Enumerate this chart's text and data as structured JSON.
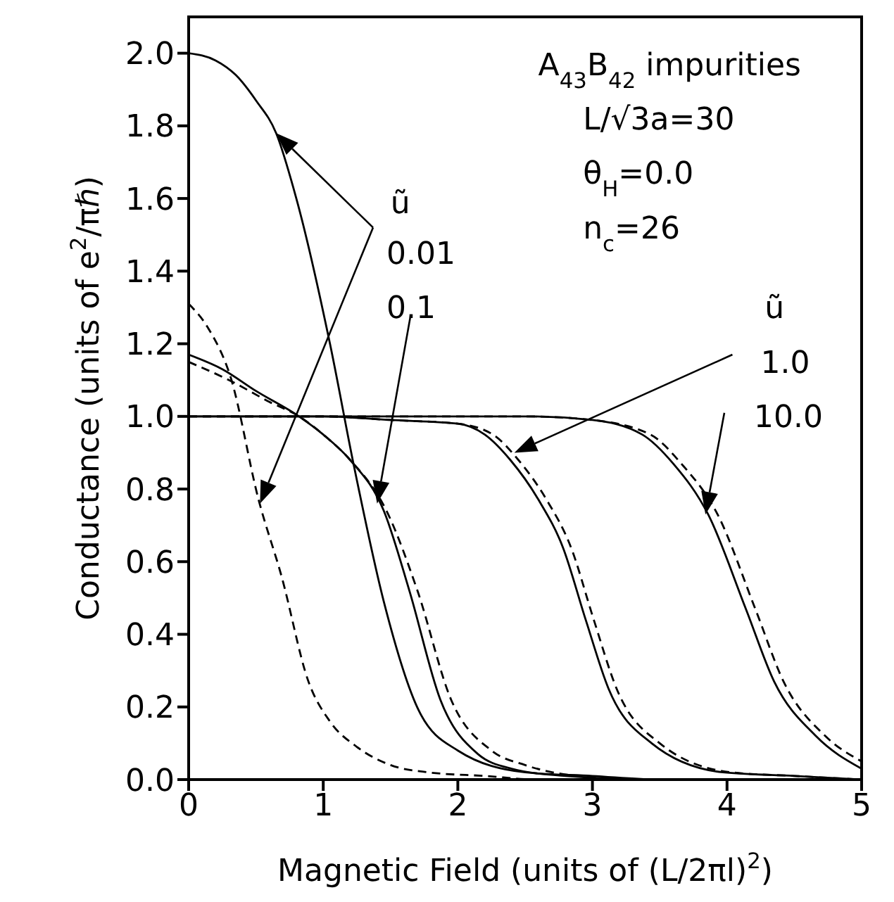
{
  "chart_data": {
    "type": "line",
    "xlabel": "Magnetic Field (units of (L/2πl)$^{2}$)",
    "ylabel": "Conductance (units of e$^{2}$/πℏ)",
    "xlim": [
      0,
      5
    ],
    "ylim": [
      0,
      2.1
    ],
    "xticks": [
      0,
      1,
      2,
      3,
      4,
      5
    ],
    "yticks": [
      {
        "value": 0,
        "label": "0.0"
      },
      0.2,
      0.4,
      0.6,
      0.8,
      {
        "value": 1,
        "label": "1.0"
      },
      1.2,
      1.4,
      1.6,
      1.8,
      {
        "value": 2,
        "label": "2.0"
      }
    ],
    "marker": "none",
    "annotations": [
      "A$_{43}$B$_{42}$ impurities",
      "L/√3a=30",
      "θ$_{H}$=0.0",
      "n$_{c}$=26",
      "ũ",
      "0.01",
      "0.1",
      "ũ",
      "1.0",
      {
        "text": "10.0",
        "x": 3.84,
        "y": 0.73
      }
    ],
    "series": [
      {
        "color": "#000000",
        "line_style": "solid",
        "x": [
          0,
          0.2,
          0.35,
          0.5,
          0.65,
          0.8,
          1.05,
          1.23,
          1.45,
          1.71,
          2.0,
          2.5,
          3,
          3.5,
          4,
          5
        ],
        "values": [
          2.0,
          1.98,
          1.94,
          1.87,
          1.78,
          1.6,
          1.2,
          0.86,
          0.49,
          0.19,
          0.08,
          0.02,
          0.01,
          0,
          0,
          0
        ]
      },
      {
        "color": "#000000",
        "line_style": "dashed",
        "x": [
          0,
          0.15,
          0.31,
          0.52,
          0.69,
          0.89,
          1.05,
          1.25,
          1.5,
          1.78,
          2.2,
          2.6,
          3,
          4,
          5
        ],
        "values": [
          1.31,
          1.24,
          1.11,
          0.77,
          0.56,
          0.27,
          0.16,
          0.09,
          0.04,
          0.02,
          0.01,
          0,
          0,
          0,
          0
        ]
      },
      {
        "color": "#000000",
        "line_style": "solid",
        "x": [
          0,
          0.25,
          0.5,
          0.82,
          1.0,
          1.2,
          1.45,
          1.64,
          1.87,
          2.15,
          2.4,
          2.8,
          3.5,
          4,
          5
        ],
        "values": [
          1.17,
          1.13,
          1.07,
          1.0,
          0.95,
          0.88,
          0.74,
          0.52,
          0.22,
          0.07,
          0.03,
          0.01,
          0,
          0,
          0
        ]
      },
      {
        "color": "#000000",
        "line_style": "dashed",
        "x": [
          0,
          0.3,
          0.6,
          0.82,
          1.0,
          1.2,
          1.47,
          1.7,
          1.95,
          2.25,
          2.5,
          2.9,
          3.5,
          4,
          5
        ],
        "values": [
          1.15,
          1.1,
          1.04,
          1.0,
          0.95,
          0.88,
          0.74,
          0.52,
          0.22,
          0.08,
          0.04,
          0.01,
          0,
          0,
          0
        ]
      },
      {
        "color": "#000000",
        "line_style": "solid",
        "x": [
          0,
          1.0,
          1.5,
          2.0,
          2.2,
          2.39,
          2.6,
          2.78,
          2.95,
          3.12,
          3.44,
          3.97,
          4.5,
          5
        ],
        "values": [
          1.0,
          1.0,
          0.99,
          0.98,
          0.95,
          0.88,
          0.77,
          0.64,
          0.44,
          0.25,
          0.1,
          0.02,
          0.01,
          0
        ]
      },
      {
        "color": "#000000",
        "line_style": "dashed",
        "x": [
          0,
          1.0,
          1.5,
          2.0,
          2.26,
          2.45,
          2.66,
          2.84,
          3.01,
          3.18,
          3.5,
          4.03,
          4.5,
          5
        ],
        "values": [
          1.0,
          1.0,
          0.99,
          0.98,
          0.95,
          0.88,
          0.77,
          0.64,
          0.44,
          0.25,
          0.1,
          0.02,
          0.01,
          0
        ]
      },
      {
        "color": "#000000",
        "line_style": "solid",
        "x": [
          0,
          1,
          2,
          2.5,
          3.0,
          3.37,
          3.6,
          3.86,
          4.14,
          4.35,
          4.66,
          5
        ],
        "values": [
          1.0,
          1.0,
          1.0,
          1.0,
          0.99,
          0.95,
          0.87,
          0.73,
          0.47,
          0.27,
          0.12,
          0.03
        ]
      },
      {
        "color": "#000000",
        "line_style": "dashed",
        "x": [
          0,
          1,
          2,
          2.5,
          3.0,
          3.43,
          3.66,
          3.93,
          4.21,
          4.42,
          4.73,
          5
        ],
        "values": [
          1.0,
          1.0,
          1.0,
          1.0,
          0.99,
          0.95,
          0.87,
          0.73,
          0.47,
          0.27,
          0.12,
          0.05
        ]
      }
    ]
  }
}
